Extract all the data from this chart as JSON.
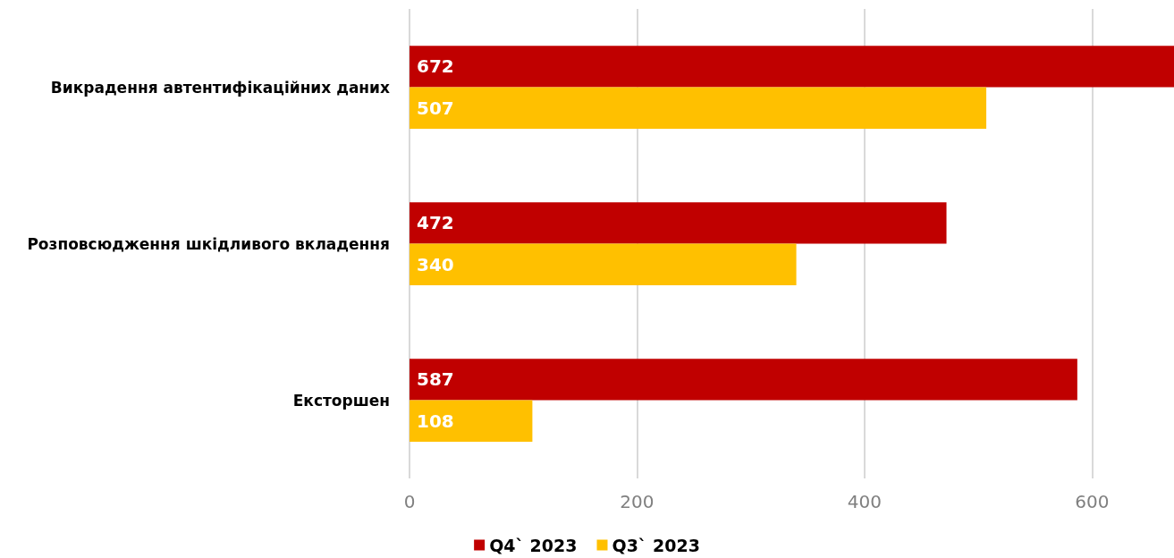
{
  "chart_data": {
    "type": "bar",
    "orientation": "horizontal",
    "categories": [
      "Викрадення автентифікаційних даних",
      "Розповсюдження шкідливого вкладення",
      "Ексторшен"
    ],
    "series": [
      {
        "name": "Q4` 2023",
        "color": "#c00000",
        "values": [
          672,
          472,
          587
        ]
      },
      {
        "name": "Q3` 2023",
        "color": "#ffc000",
        "values": [
          507,
          340,
          108
        ]
      }
    ],
    "xlim": [
      0,
      672
    ],
    "xticks": [
      0,
      200,
      400,
      600
    ],
    "grid": "x",
    "legend": "bottom",
    "data_labels": true
  }
}
